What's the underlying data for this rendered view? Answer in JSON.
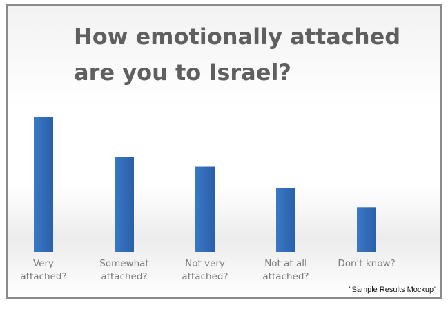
{
  "chart_data": {
    "type": "bar",
    "title": "How emotionally attached\nare you to Israel?",
    "categories": [
      "Very\nattached?",
      "Somewhat\nattached?",
      "Not very\nattached?",
      "Not at all\nattached?",
      "Don't know?"
    ],
    "values": [
      100,
      70,
      63,
      47,
      33
    ],
    "ylim": [
      0,
      100
    ],
    "xlabel": "",
    "ylabel": "",
    "grid": false,
    "legend": "none",
    "bar_color": "#2f6bb8"
  },
  "footnote": "\"Sample Results Mockup\""
}
